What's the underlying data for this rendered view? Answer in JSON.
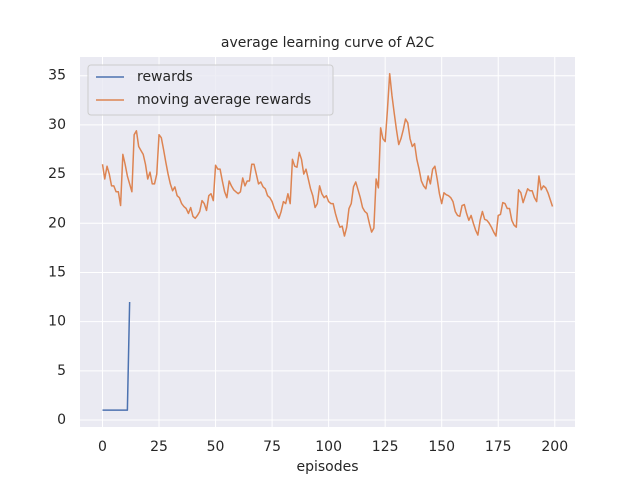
{
  "chart_data": {
    "type": "line",
    "title": "average learning curve of A2C",
    "x_label": "episodes",
    "xlim": [
      -9.95,
      208.95
    ],
    "ylim": [
      -0.71,
      36.9
    ],
    "xticks": [
      0,
      25,
      50,
      75,
      100,
      125,
      150,
      175,
      200
    ],
    "yticks": [
      0,
      5,
      10,
      15,
      20,
      25,
      30,
      35
    ],
    "grid": true,
    "legend": "upper left",
    "series": [
      {
        "name": "rewards",
        "color": "#4c72b0",
        "x": [
          0,
          1,
          2,
          3,
          4,
          5,
          6,
          7,
          8,
          9,
          10,
          11,
          12
        ],
        "values": [
          1,
          1,
          1,
          1,
          1,
          1,
          1,
          1,
          1,
          1,
          1,
          1,
          12
        ]
      },
      {
        "name": "moving average rewards",
        "color": "#dd8452",
        "x": [
          0,
          1,
          2,
          3,
          4,
          5,
          6,
          7,
          8,
          9,
          10,
          11,
          12,
          13,
          14,
          15,
          16,
          17,
          18,
          19,
          20,
          21,
          22,
          23,
          24,
          25,
          26,
          27,
          28,
          29,
          30,
          31,
          32,
          33,
          34,
          35,
          36,
          37,
          38,
          39,
          40,
          41,
          42,
          43,
          44,
          45,
          46,
          47,
          48,
          49,
          50,
          51,
          52,
          53,
          54,
          55,
          56,
          57,
          58,
          59,
          60,
          61,
          62,
          63,
          64,
          65,
          66,
          67,
          68,
          69,
          70,
          71,
          72,
          73,
          74,
          75,
          76,
          77,
          78,
          79,
          80,
          81,
          82,
          83,
          84,
          85,
          86,
          87,
          88,
          89,
          90,
          91,
          92,
          93,
          94,
          95,
          96,
          97,
          98,
          99,
          100,
          101,
          102,
          103,
          104,
          105,
          106,
          107,
          108,
          109,
          110,
          111,
          112,
          113,
          114,
          115,
          116,
          117,
          118,
          119,
          120,
          121,
          122,
          123,
          124,
          125,
          126,
          127,
          128,
          129,
          130,
          131,
          132,
          133,
          134,
          135,
          136,
          137,
          138,
          139,
          140,
          141,
          142,
          143,
          144,
          145,
          146,
          147,
          148,
          149,
          150,
          151,
          152,
          153,
          154,
          155,
          156,
          157,
          158,
          159,
          160,
          161,
          162,
          163,
          164,
          165,
          166,
          167,
          168,
          169,
          170,
          171,
          172,
          173,
          174,
          175,
          176,
          177,
          178,
          179,
          180,
          181,
          182,
          183,
          184,
          185,
          186,
          187,
          188,
          189,
          190,
          191,
          192,
          193,
          194,
          195,
          196,
          197,
          198,
          199
        ],
        "values": [
          26,
          24.5,
          25.8,
          25,
          23.8,
          23.8,
          23.2,
          23.2,
          21.8,
          27,
          26,
          24.8,
          24,
          23.2,
          29,
          29.4,
          27.8,
          27.4,
          27,
          26,
          24.5,
          25.2,
          24,
          24,
          25,
          29,
          28.7,
          27.5,
          26.2,
          25,
          24,
          23.3,
          23.7,
          22.8,
          22.6,
          22,
          21.7,
          21.5,
          21,
          21.6,
          20.7,
          20.5,
          20.8,
          21.2,
          22.3,
          22,
          21.3,
          22.8,
          23,
          22.3,
          25.9,
          25.5,
          25.5,
          24.3,
          23.2,
          22.6,
          24.3,
          23.8,
          23.4,
          23.2,
          23,
          23.2,
          24.6,
          23.8,
          24.3,
          24.3,
          26,
          26,
          25,
          24,
          24.2,
          23.7,
          23.5,
          22.8,
          22.6,
          22.2,
          21.5,
          21,
          20.5,
          21.2,
          22.2,
          22,
          23,
          22,
          26.5,
          25.8,
          25.7,
          27.2,
          26.5,
          25,
          25.5,
          24.5,
          23.5,
          22.8,
          21.6,
          22,
          23.8,
          23,
          22.6,
          22.8,
          22.2,
          22,
          22,
          21,
          20.2,
          19.6,
          19.7,
          18.7,
          19.6,
          21.5,
          22,
          23.7,
          24.2,
          23.4,
          22.6,
          21.6,
          21.2,
          21,
          20,
          19.1,
          19.5,
          24.5,
          23.6,
          29.7,
          28.6,
          28.3,
          31.5,
          35.2,
          33,
          31.2,
          29.5,
          28,
          28.6,
          29.5,
          30.6,
          30.2,
          28.6,
          27.8,
          28.1,
          26.5,
          25.5,
          24.3,
          23.8,
          23.5,
          24.8,
          24,
          25.5,
          25.8,
          24.5,
          23,
          22,
          23.1,
          22.9,
          22.8,
          22.6,
          22.2,
          21.2,
          20.8,
          20.7,
          21.8,
          21.9,
          21,
          20.3,
          20.8,
          20,
          19.3,
          18.8,
          20.3,
          21.2,
          20.4,
          20.3,
          20,
          19.6,
          19.1,
          18.7,
          20.8,
          20.9,
          22.1,
          22,
          21.5,
          21.5,
          20.3,
          19.8,
          19.6,
          23.4,
          23.1,
          22.1,
          22.8,
          23.5,
          23.3,
          23.3,
          22.6,
          22.2,
          24.8,
          23.4,
          23.8,
          23.6,
          23.1,
          22.4,
          21.7
        ]
      }
    ]
  }
}
